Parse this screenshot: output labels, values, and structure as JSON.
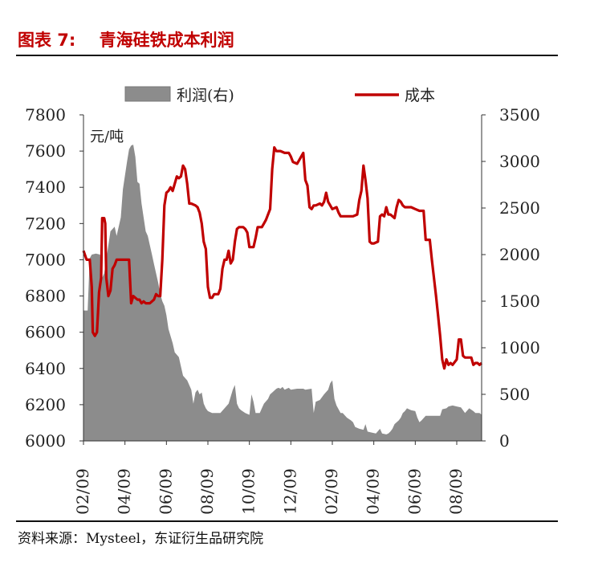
{
  "figure": {
    "label": "图表 7:",
    "title": "青海硅铁成本利润",
    "source": "资料来源：Mysteel，东证衍生品研究院"
  },
  "colors": {
    "title": "#c00000",
    "cost_line": "#c00000",
    "profit_area": "#8c8c8c",
    "axis": "#333333"
  },
  "chart_data": {
    "type": "line+area",
    "unit_label": "元/吨",
    "legend": {
      "placement": "top",
      "entries": [
        "利润(右)",
        "成本"
      ]
    },
    "grid": false,
    "x_ticks": [
      "02/09",
      "04/09",
      "06/09",
      "08/09",
      "10/09",
      "12/09",
      "02/09",
      "04/09",
      "06/09",
      "08/09"
    ],
    "x_range_index": [
      0,
      19.2
    ],
    "y_left": {
      "label": "成本",
      "range": [
        6000,
        7800
      ],
      "ticks": [
        6000,
        6200,
        6400,
        6600,
        6800,
        7000,
        7200,
        7400,
        7600,
        7800
      ]
    },
    "y_right": {
      "label": "利润",
      "range": [
        0,
        3500
      ],
      "ticks": [
        0,
        500,
        1000,
        1500,
        2000,
        2500,
        3000,
        3500
      ]
    },
    "series": [
      {
        "name": "利润(右)",
        "axis": "right",
        "kind": "area",
        "points": [
          [
            0,
            1400
          ],
          [
            0.2,
            1400
          ],
          [
            0.3,
            1960
          ],
          [
            0.4,
            2000
          ],
          [
            0.6,
            2010
          ],
          [
            0.8,
            2000
          ],
          [
            0.9,
            1750
          ],
          [
            1.0,
            1800
          ],
          [
            1.2,
            2100
          ],
          [
            1.3,
            2250
          ],
          [
            1.5,
            2300
          ],
          [
            1.6,
            2200
          ],
          [
            1.8,
            2400
          ],
          [
            1.9,
            2700
          ],
          [
            2.1,
            3000
          ],
          [
            2.2,
            3130
          ],
          [
            2.3,
            3170
          ],
          [
            2.4,
            3180
          ],
          [
            2.5,
            3050
          ],
          [
            2.6,
            2780
          ],
          [
            2.7,
            2760
          ],
          [
            2.8,
            2550
          ],
          [
            2.9,
            2400
          ],
          [
            3.0,
            2250
          ],
          [
            3.1,
            2200
          ],
          [
            3.2,
            2100
          ],
          [
            3.3,
            2000
          ],
          [
            3.4,
            1900
          ],
          [
            3.5,
            1800
          ],
          [
            3.6,
            1700
          ],
          [
            3.7,
            1580
          ],
          [
            3.8,
            1500
          ],
          [
            3.9,
            1450
          ],
          [
            4.0,
            1350
          ],
          [
            4.1,
            1200
          ],
          [
            4.3,
            1050
          ],
          [
            4.4,
            950
          ],
          [
            4.6,
            900
          ],
          [
            4.7,
            800
          ],
          [
            4.8,
            700
          ],
          [
            5.0,
            650
          ],
          [
            5.2,
            550
          ],
          [
            5.3,
            400
          ],
          [
            5.4,
            520
          ],
          [
            5.5,
            550
          ],
          [
            5.6,
            500
          ],
          [
            5.7,
            520
          ],
          [
            5.8,
            400
          ],
          [
            5.9,
            350
          ],
          [
            6.0,
            320
          ],
          [
            6.2,
            300
          ],
          [
            6.5,
            300
          ],
          [
            6.6,
            300
          ],
          [
            6.8,
            350
          ],
          [
            7.0,
            400
          ],
          [
            7.2,
            550
          ],
          [
            7.3,
            600
          ],
          [
            7.4,
            400
          ],
          [
            7.5,
            350
          ],
          [
            7.6,
            330
          ],
          [
            7.8,
            300
          ],
          [
            8.0,
            280
          ],
          [
            8.1,
            500
          ],
          [
            8.2,
            420
          ],
          [
            8.3,
            300
          ],
          [
            8.5,
            300
          ],
          [
            8.6,
            350
          ],
          [
            8.7,
            400
          ],
          [
            8.9,
            450
          ],
          [
            9.0,
            500
          ],
          [
            9.1,
            520
          ],
          [
            9.2,
            540
          ],
          [
            9.3,
            560
          ],
          [
            9.4,
            570
          ],
          [
            9.5,
            560
          ],
          [
            9.6,
            580
          ],
          [
            9.7,
            550
          ],
          [
            9.8,
            560
          ],
          [
            9.9,
            570
          ],
          [
            10.0,
            550
          ],
          [
            10.3,
            560
          ],
          [
            10.6,
            560
          ],
          [
            10.7,
            550
          ],
          [
            11.0,
            560
          ],
          [
            11.1,
            300
          ],
          [
            11.2,
            420
          ],
          [
            11.4,
            440
          ],
          [
            11.5,
            470
          ],
          [
            11.6,
            500
          ],
          [
            11.8,
            550
          ],
          [
            11.9,
            620
          ],
          [
            12.0,
            650
          ],
          [
            12.1,
            450
          ],
          [
            12.2,
            380
          ],
          [
            12.4,
            300
          ],
          [
            12.5,
            300
          ],
          [
            12.7,
            250
          ],
          [
            12.9,
            220
          ],
          [
            13.0,
            200
          ],
          [
            13.1,
            150
          ],
          [
            13.3,
            130
          ],
          [
            13.5,
            120
          ],
          [
            13.6,
            180
          ],
          [
            13.7,
            100
          ],
          [
            13.9,
            90
          ],
          [
            14.1,
            80
          ],
          [
            14.3,
            130
          ],
          [
            14.4,
            80
          ],
          [
            14.6,
            70
          ],
          [
            14.7,
            80
          ],
          [
            14.8,
            100
          ],
          [
            14.9,
            130
          ],
          [
            15.0,
            180
          ],
          [
            15.2,
            220
          ],
          [
            15.3,
            250
          ],
          [
            15.4,
            300
          ],
          [
            15.5,
            320
          ],
          [
            15.6,
            350
          ],
          [
            15.7,
            340
          ],
          [
            15.8,
            330
          ],
          [
            16.0,
            320
          ],
          [
            16.1,
            250
          ],
          [
            16.2,
            200
          ],
          [
            16.3,
            220
          ],
          [
            16.5,
            270
          ],
          [
            16.6,
            270
          ],
          [
            16.8,
            270
          ],
          [
            17.0,
            270
          ],
          [
            17.2,
            270
          ],
          [
            17.3,
            340
          ],
          [
            17.5,
            350
          ],
          [
            17.6,
            370
          ],
          [
            17.8,
            380
          ],
          [
            18.0,
            370
          ],
          [
            18.2,
            360
          ],
          [
            18.4,
            300
          ],
          [
            18.6,
            350
          ],
          [
            18.8,
            320
          ],
          [
            18.9,
            300
          ],
          [
            19.1,
            300
          ],
          [
            19.2,
            280
          ]
        ]
      },
      {
        "name": "成本",
        "axis": "left",
        "kind": "line",
        "points": [
          [
            0,
            7050
          ],
          [
            0.15,
            7000
          ],
          [
            0.3,
            7000
          ],
          [
            0.4,
            6850
          ],
          [
            0.45,
            6600
          ],
          [
            0.55,
            6580
          ],
          [
            0.65,
            6600
          ],
          [
            0.75,
            6820
          ],
          [
            0.85,
            6900
          ],
          [
            0.9,
            7230
          ],
          [
            1.0,
            7230
          ],
          [
            1.05,
            7200
          ],
          [
            1.1,
            6900
          ],
          [
            1.2,
            6800
          ],
          [
            1.3,
            6830
          ],
          [
            1.4,
            6950
          ],
          [
            1.5,
            6970
          ],
          [
            1.6,
            7000
          ],
          [
            1.8,
            7000
          ],
          [
            2.0,
            7000
          ],
          [
            2.2,
            7000
          ],
          [
            2.3,
            6760
          ],
          [
            2.4,
            6800
          ],
          [
            2.6,
            6780
          ],
          [
            2.7,
            6780
          ],
          [
            2.8,
            6760
          ],
          [
            2.9,
            6770
          ],
          [
            3.0,
            6760
          ],
          [
            3.2,
            6760
          ],
          [
            3.4,
            6780
          ],
          [
            3.5,
            6810
          ],
          [
            3.6,
            6800
          ],
          [
            3.7,
            6800
          ],
          [
            3.8,
            7000
          ],
          [
            3.9,
            7300
          ],
          [
            4.0,
            7370
          ],
          [
            4.1,
            7380
          ],
          [
            4.2,
            7400
          ],
          [
            4.3,
            7380
          ],
          [
            4.4,
            7420
          ],
          [
            4.5,
            7460
          ],
          [
            4.6,
            7450
          ],
          [
            4.7,
            7460
          ],
          [
            4.8,
            7520
          ],
          [
            4.9,
            7500
          ],
          [
            5.0,
            7420
          ],
          [
            5.1,
            7310
          ],
          [
            5.2,
            7310
          ],
          [
            5.4,
            7300
          ],
          [
            5.5,
            7290
          ],
          [
            5.6,
            7260
          ],
          [
            5.7,
            7200
          ],
          [
            5.8,
            7100
          ],
          [
            5.9,
            7060
          ],
          [
            6.0,
            6850
          ],
          [
            6.1,
            6790
          ],
          [
            6.2,
            6790
          ],
          [
            6.3,
            6810
          ],
          [
            6.5,
            6810
          ],
          [
            6.6,
            6840
          ],
          [
            6.7,
            6950
          ],
          [
            6.8,
            7000
          ],
          [
            6.9,
            7000
          ],
          [
            7.0,
            7050
          ],
          [
            7.1,
            6980
          ],
          [
            7.2,
            7000
          ],
          [
            7.3,
            7100
          ],
          [
            7.4,
            7170
          ],
          [
            7.5,
            7180
          ],
          [
            7.7,
            7180
          ],
          [
            7.8,
            7170
          ],
          [
            7.9,
            7150
          ],
          [
            8.0,
            7070
          ],
          [
            8.2,
            7070
          ],
          [
            8.3,
            7120
          ],
          [
            8.4,
            7180
          ],
          [
            8.6,
            7180
          ],
          [
            8.7,
            7200
          ],
          [
            8.8,
            7220
          ],
          [
            8.9,
            7250
          ],
          [
            9.0,
            7280
          ],
          [
            9.1,
            7500
          ],
          [
            9.2,
            7620
          ],
          [
            9.3,
            7600
          ],
          [
            9.5,
            7600
          ],
          [
            9.7,
            7590
          ],
          [
            9.9,
            7590
          ],
          [
            10.0,
            7570
          ],
          [
            10.1,
            7540
          ],
          [
            10.3,
            7530
          ],
          [
            10.4,
            7550
          ],
          [
            10.6,
            7590
          ],
          [
            10.7,
            7440
          ],
          [
            10.8,
            7410
          ],
          [
            10.9,
            7290
          ],
          [
            11.0,
            7280
          ],
          [
            11.1,
            7300
          ],
          [
            11.2,
            7300
          ],
          [
            11.4,
            7310
          ],
          [
            11.5,
            7300
          ],
          [
            11.6,
            7320
          ],
          [
            11.7,
            7370
          ],
          [
            11.8,
            7320
          ],
          [
            11.9,
            7300
          ],
          [
            12.0,
            7280
          ],
          [
            12.2,
            7290
          ],
          [
            12.3,
            7260
          ],
          [
            12.4,
            7240
          ],
          [
            12.6,
            7240
          ],
          [
            12.8,
            7240
          ],
          [
            13.0,
            7240
          ],
          [
            13.2,
            7250
          ],
          [
            13.3,
            7330
          ],
          [
            13.4,
            7380
          ],
          [
            13.5,
            7520
          ],
          [
            13.6,
            7440
          ],
          [
            13.7,
            7340
          ],
          [
            13.8,
            7100
          ],
          [
            13.9,
            7090
          ],
          [
            14.0,
            7090
          ],
          [
            14.2,
            7100
          ],
          [
            14.3,
            7240
          ],
          [
            14.4,
            7250
          ],
          [
            14.5,
            7240
          ],
          [
            14.6,
            7290
          ],
          [
            14.7,
            7250
          ],
          [
            14.8,
            7250
          ],
          [
            15.0,
            7230
          ],
          [
            15.1,
            7290
          ],
          [
            15.2,
            7330
          ],
          [
            15.3,
            7320
          ],
          [
            15.4,
            7300
          ],
          [
            15.5,
            7290
          ],
          [
            15.6,
            7290
          ],
          [
            15.8,
            7290
          ],
          [
            16.0,
            7280
          ],
          [
            16.2,
            7270
          ],
          [
            16.4,
            7270
          ],
          [
            16.5,
            7110
          ],
          [
            16.7,
            7110
          ],
          [
            16.8,
            7000
          ],
          [
            16.9,
            6900
          ],
          [
            17.0,
            6800
          ],
          [
            17.1,
            6690
          ],
          [
            17.2,
            6580
          ],
          [
            17.3,
            6450
          ],
          [
            17.4,
            6400
          ],
          [
            17.5,
            6450
          ],
          [
            17.6,
            6420
          ],
          [
            17.7,
            6430
          ],
          [
            17.8,
            6420
          ],
          [
            18.0,
            6450
          ],
          [
            18.1,
            6560
          ],
          [
            18.2,
            6560
          ],
          [
            18.3,
            6470
          ],
          [
            18.4,
            6460
          ],
          [
            18.5,
            6460
          ],
          [
            18.7,
            6460
          ],
          [
            18.8,
            6420
          ],
          [
            18.9,
            6430
          ],
          [
            19.0,
            6430
          ],
          [
            19.1,
            6420
          ],
          [
            19.2,
            6430
          ]
        ]
      }
    ]
  }
}
